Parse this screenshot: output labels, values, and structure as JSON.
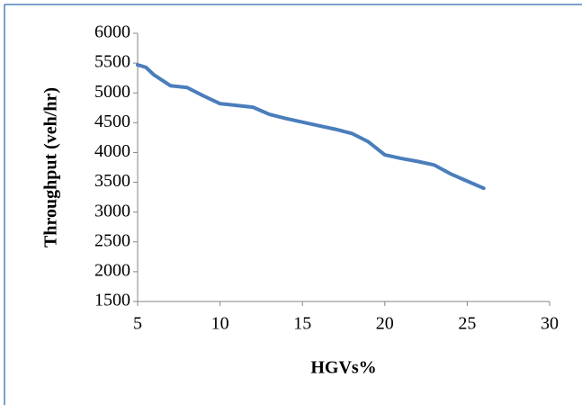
{
  "chart_data": {
    "type": "line",
    "x_label": "HGVs%",
    "y_label": "Throughput (veh/hr)",
    "x": [
      5,
      5.5,
      6,
      7,
      8,
      9,
      10,
      11,
      12,
      13,
      14,
      15,
      16,
      17,
      18,
      19,
      20,
      21,
      22,
      23,
      24,
      25,
      26
    ],
    "series": [
      {
        "color": "#4a7ebb",
        "values": [
          5470,
          5430,
          5300,
          5120,
          5090,
          4950,
          4820,
          4790,
          4760,
          4640,
          4570,
          4510,
          4450,
          4390,
          4320,
          4180,
          3960,
          3900,
          3850,
          3790,
          3640,
          3520,
          3400
        ]
      }
    ],
    "xlim": [
      5,
      30
    ],
    "xticks": [
      5,
      10,
      15,
      20,
      25,
      30
    ],
    "ylim": [
      1500,
      6000
    ],
    "yticks": [
      1500,
      2000,
      2500,
      3000,
      3500,
      4000,
      4500,
      5000,
      5500,
      6000
    ],
    "grid": false
  }
}
